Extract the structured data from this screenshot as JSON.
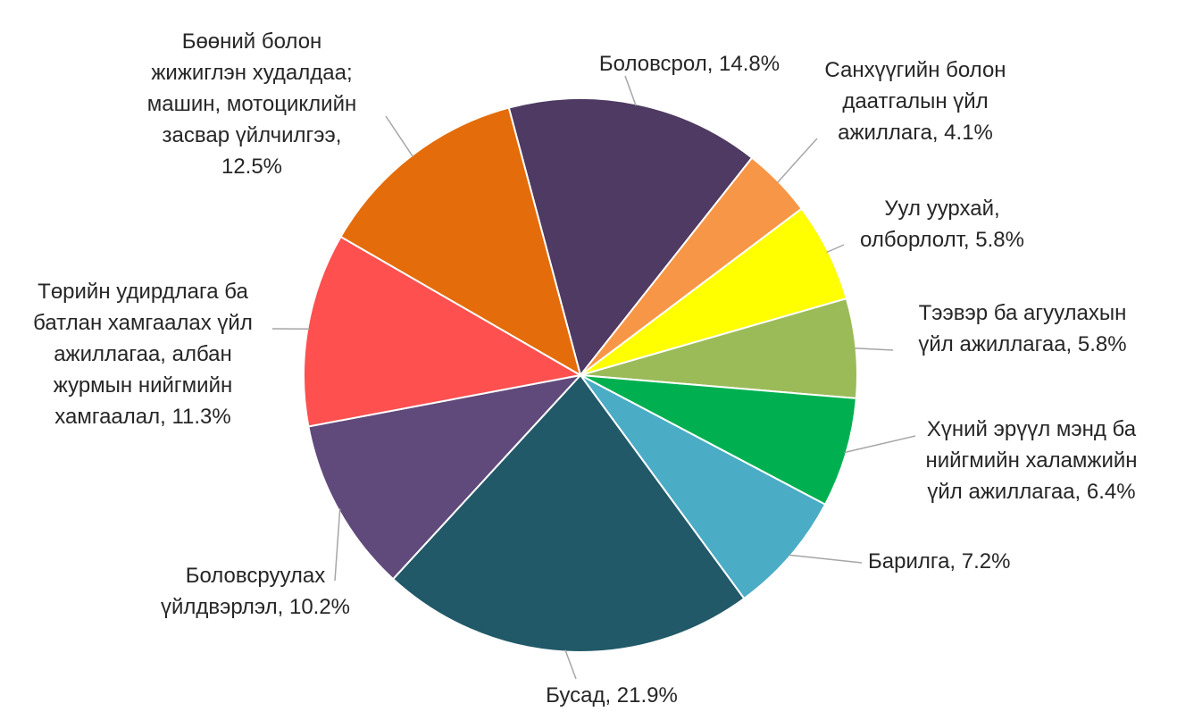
{
  "chart_data": {
    "type": "pie",
    "title": "",
    "value_unit": "%",
    "start_angle_deg": -105,
    "direction": "clockwise",
    "slices": [
      {
        "name": "Боловсрол",
        "value": 14.8,
        "color": "#4e3a62",
        "label_lines": [
          "Боловсрол, 14.8%"
        ]
      },
      {
        "name": "Санхүүгийн болон даатгалын үйл ажиллага",
        "value": 4.1,
        "color": "#f79646",
        "label_lines": [
          "Санхүүгийн болон",
          "даатгалын үйл",
          "ажиллага, 4.1%"
        ]
      },
      {
        "name": "Уул уурхай, олборлолт",
        "value": 5.8,
        "color": "#ffff00",
        "label_lines": [
          "Уул уурхай,",
          "олборлолт, 5.8%"
        ]
      },
      {
        "name": "Тээвэр ба агуулахын үйл ажиллагаа",
        "value": 5.8,
        "color": "#9bbb59",
        "label_lines": [
          "Тээвэр ба агуулахын",
          "үйл ажиллагаа, 5.8%"
        ]
      },
      {
        "name": "Хүний эрүүл мэнд ба нийгмийн халамжийн үйл ажиллагаа",
        "value": 6.4,
        "color": "#00b050",
        "label_lines": [
          "Хүний эрүүл мэнд ба",
          "нийгмийн халамжийн",
          "үйл ажиллагаа, 6.4%"
        ]
      },
      {
        "name": "Барилга",
        "value": 7.2,
        "color": "#4bacc6",
        "label_lines": [
          "Барилга, 7.2%"
        ]
      },
      {
        "name": "Бусад",
        "value": 21.9,
        "color": "#215968",
        "label_lines": [
          "Бусад, 21.9%"
        ]
      },
      {
        "name": "Боловсруулах үйлдвэрлэл",
        "value": 10.2,
        "color": "#604a7b",
        "label_lines": [
          "Боловсруулах",
          "үйлдвэрлэл, 10.2%"
        ]
      },
      {
        "name": "Төрийн удирдлага ба батлан хамгаалах үйл ажиллагаа, албан журмын нийгмийн хамгаалал",
        "value": 11.3,
        "color": "#ff5050",
        "label_lines": [
          "Төрийн удирдлага ба",
          "батлан хамгаалах үйл",
          "ажиллагаа, албан",
          "журмын нийгмийн",
          "хамгаалал, 11.3%"
        ]
      },
      {
        "name": "Бөөний болон жижиглэн худалдаа; машин, мотоциклийн засвар үйлчилгээ",
        "value": 12.5,
        "color": "#e46c0a",
        "label_lines": [
          "Бөөний болон",
          "жижиглэн худалдаа;",
          "машин, мотоциклийн",
          "засвар үйлчилгээ,",
          "12.5%"
        ]
      }
    ]
  }
}
